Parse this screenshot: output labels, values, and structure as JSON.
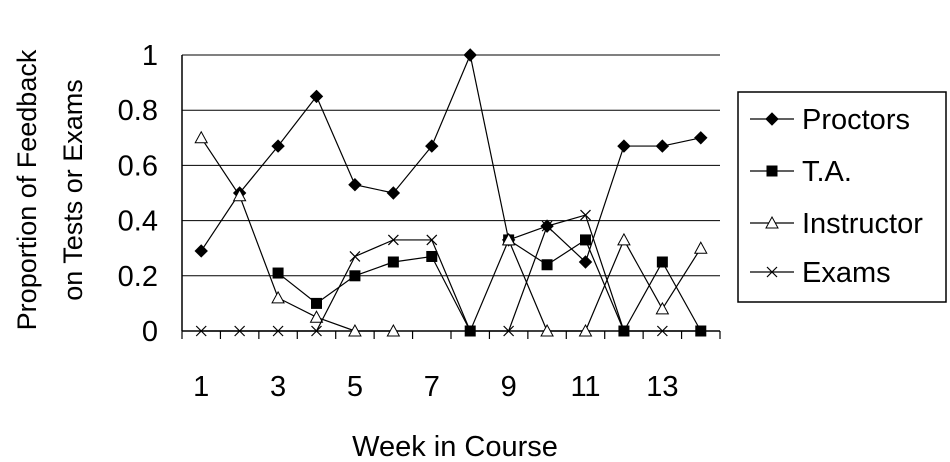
{
  "chart_data": {
    "type": "line",
    "title": "",
    "ylabel_lines": [
      "Proportion of Feedback",
      "on Tests or Exams"
    ],
    "xlabel": "Week in Course",
    "x": [
      1,
      2,
      3,
      4,
      5,
      6,
      7,
      8,
      9,
      10,
      11,
      12,
      13,
      14
    ],
    "x_tick_labels": [
      "1",
      "3",
      "5",
      "7",
      "9",
      "11",
      "13"
    ],
    "x_tick_label_values": [
      1,
      3,
      5,
      7,
      9,
      11,
      13
    ],
    "y_ticks": [
      0,
      0.2,
      0.4,
      0.6,
      0.8,
      1
    ],
    "y_tick_labels": [
      "0",
      "0.2",
      "0.4",
      "0.6",
      "0.8",
      "1"
    ],
    "ylim": [
      0,
      1
    ],
    "xlim": [
      0.5,
      14.5
    ],
    "grid": true,
    "legend_position": "right",
    "series": [
      {
        "name": "Proctors",
        "marker": "diamond",
        "values": [
          0.29,
          0.5,
          0.67,
          0.85,
          0.53,
          0.5,
          0.67,
          1.0,
          0.33,
          0.38,
          0.25,
          0.67,
          0.67,
          0.7
        ]
      },
      {
        "name": "T.A.",
        "marker": "square",
        "values": [
          null,
          null,
          0.21,
          0.1,
          0.2,
          0.25,
          0.27,
          0.0,
          0.33,
          0.24,
          0.33,
          0.0,
          0.25,
          0.0
        ]
      },
      {
        "name": "Instructor",
        "marker": "triangle",
        "values": [
          0.7,
          0.49,
          0.12,
          0.05,
          0.0,
          0.0,
          null,
          null,
          0.33,
          0.0,
          0.0,
          0.33,
          0.08,
          0.3
        ]
      },
      {
        "name": "Exams",
        "marker": "x",
        "values": [
          0.0,
          0.0,
          0.0,
          0.0,
          0.27,
          0.33,
          0.33,
          0.0,
          0.0,
          0.38,
          0.42,
          0.0,
          0.0,
          0.0
        ]
      }
    ]
  }
}
